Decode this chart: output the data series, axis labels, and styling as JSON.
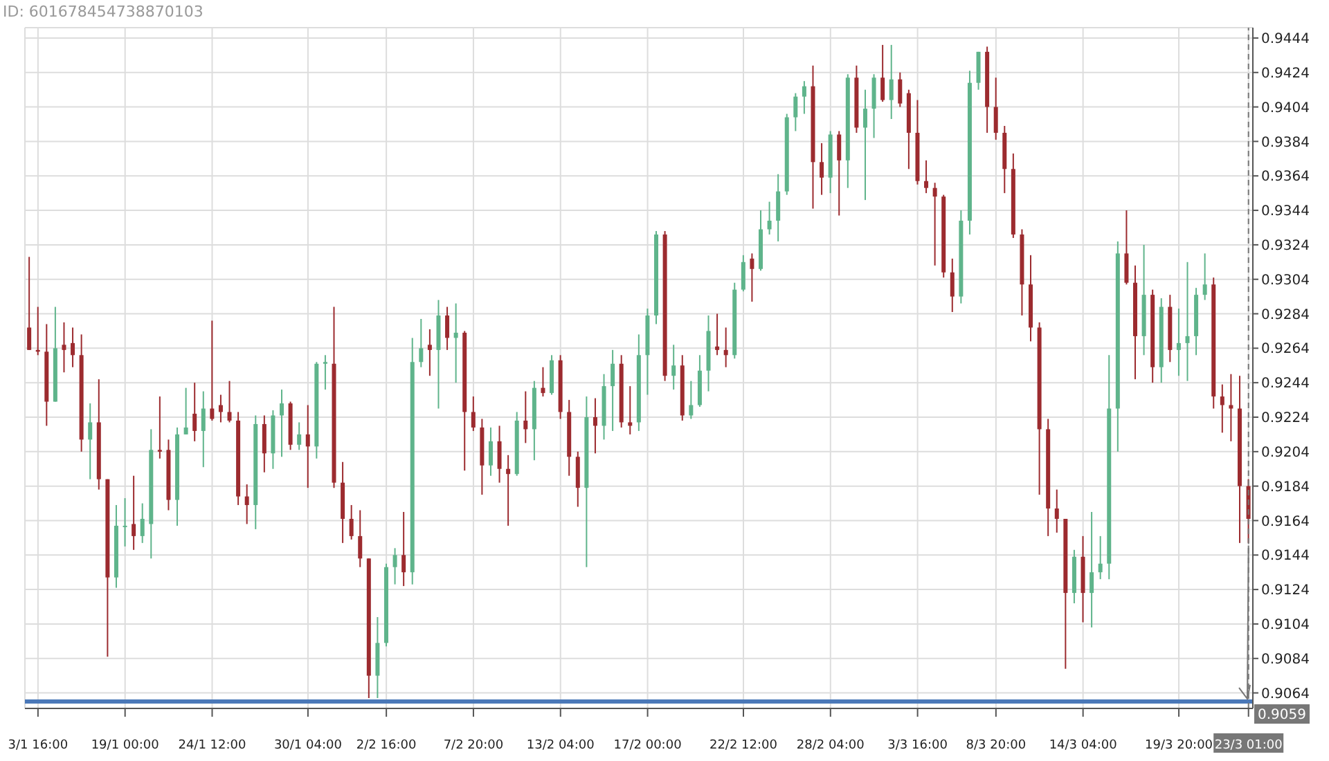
{
  "chart_data": {
    "type": "candlestick",
    "annotations": [
      "ID: 601678454738870103"
    ],
    "categories": [
      null,
      "3/1 16:00",
      null,
      null,
      null,
      null,
      null,
      null,
      null,
      null,
      null,
      "19/1 00:00",
      null,
      null,
      null,
      null,
      null,
      null,
      null,
      null,
      null,
      "24/1 12:00",
      null,
      null,
      null,
      null,
      null,
      null,
      null,
      null,
      null,
      null,
      "30/1 04:00",
      null,
      null,
      null,
      null,
      null,
      null,
      null,
      null,
      "2/2 16:00",
      null,
      null,
      null,
      null,
      null,
      null,
      null,
      null,
      null,
      "7/2 20:00",
      null,
      null,
      null,
      null,
      null,
      null,
      null,
      null,
      null,
      "13/2 04:00",
      null,
      null,
      null,
      null,
      null,
      null,
      null,
      null,
      null,
      "17/2 00:00",
      null,
      null,
      null,
      null,
      null,
      null,
      null,
      null,
      null,
      null,
      "22/2 12:00",
      null,
      null,
      null,
      null,
      null,
      null,
      null,
      null,
      null,
      "28/2 04:00",
      null,
      null,
      null,
      null,
      null,
      null,
      null,
      null,
      null,
      "3/3 16:00",
      null,
      null,
      null,
      null,
      null,
      null,
      null,
      null,
      "8/3 20:00",
      null,
      null,
      null,
      null,
      null,
      null,
      null,
      null,
      null,
      "14/3 04:00",
      null,
      null,
      null,
      null,
      null,
      null,
      null,
      null,
      null,
      null,
      "19/3 20:00",
      null,
      null,
      null,
      null,
      null,
      null,
      null,
      "23/3 01:00"
    ],
    "ohlc": [
      [
        0.9276,
        0.9317,
        0.9263,
        0.9263
      ],
      [
        0.9263,
        0.9288,
        0.926,
        0.9262
      ],
      [
        0.9262,
        0.9278,
        0.9219,
        0.9233
      ],
      [
        0.9233,
        0.9288,
        0.9233,
        0.9264
      ],
      [
        0.9266,
        0.9279,
        0.925,
        0.9263
      ],
      [
        0.9267,
        0.9276,
        0.9253,
        0.926
      ],
      [
        0.926,
        0.9272,
        0.9204,
        0.9211
      ],
      [
        0.9211,
        0.9232,
        0.9188,
        0.9221
      ],
      [
        0.9221,
        0.9246,
        0.9182,
        0.9188
      ],
      [
        0.9188,
        0.9188,
        0.9085,
        0.9131
      ],
      [
        0.9131,
        0.9173,
        0.9125,
        0.9161
      ],
      [
        0.9161,
        0.9177,
        0.9149,
        0.9161
      ],
      [
        0.9162,
        0.919,
        0.9147,
        0.9155
      ],
      [
        0.9155,
        0.9174,
        0.9151,
        0.9165
      ],
      [
        0.9162,
        0.9217,
        0.9142,
        0.9205
      ],
      [
        0.9205,
        0.9236,
        0.92,
        0.9204
      ],
      [
        0.9205,
        0.9211,
        0.917,
        0.9176
      ],
      [
        0.9176,
        0.9218,
        0.9161,
        0.9214
      ],
      [
        0.9214,
        0.9241,
        0.9214,
        0.9218
      ],
      [
        0.9226,
        0.9244,
        0.921,
        0.9216
      ],
      [
        0.9216,
        0.9239,
        0.9195,
        0.9229
      ],
      [
        0.9229,
        0.928,
        0.9222,
        0.9223
      ],
      [
        0.9231,
        0.9237,
        0.9221,
        0.9227
      ],
      [
        0.9227,
        0.9245,
        0.9221,
        0.9222
      ],
      [
        0.9222,
        0.9227,
        0.9173,
        0.9178
      ],
      [
        0.9178,
        0.9185,
        0.9162,
        0.9173
      ],
      [
        0.9173,
        0.9225,
        0.9159,
        0.922
      ],
      [
        0.922,
        0.9225,
        0.9192,
        0.9203
      ],
      [
        0.9203,
        0.9228,
        0.9194,
        0.9225
      ],
      [
        0.9225,
        0.924,
        0.9201,
        0.9232
      ],
      [
        0.9232,
        0.9233,
        0.9205,
        0.9208
      ],
      [
        0.9208,
        0.9221,
        0.9205,
        0.9214
      ],
      [
        0.9214,
        0.9231,
        0.9183,
        0.9207
      ],
      [
        0.9207,
        0.9256,
        0.92,
        0.9255
      ],
      [
        0.9255,
        0.926,
        0.924,
        0.9256
      ],
      [
        0.9255,
        0.9288,
        0.9183,
        0.9186
      ],
      [
        0.9186,
        0.9198,
        0.9151,
        0.9165
      ],
      [
        0.9165,
        0.9173,
        0.9153,
        0.9155
      ],
      [
        0.9155,
        0.917,
        0.9137,
        0.9142
      ],
      [
        0.9142,
        0.9142,
        0.9061,
        0.9074
      ],
      [
        0.9074,
        0.9108,
        0.9061,
        0.9093
      ],
      [
        0.9093,
        0.9139,
        0.9091,
        0.9137
      ],
      [
        0.9137,
        0.9148,
        0.9127,
        0.9144
      ],
      [
        0.9144,
        0.9169,
        0.9126,
        0.9134
      ],
      [
        0.9134,
        0.927,
        0.9127,
        0.9256
      ],
      [
        0.9256,
        0.9281,
        0.9253,
        0.9264
      ],
      [
        0.9266,
        0.9275,
        0.9248,
        0.9263
      ],
      [
        0.9263,
        0.9292,
        0.9229,
        0.9283
      ],
      [
        0.9283,
        0.9288,
        0.9263,
        0.927
      ],
      [
        0.927,
        0.929,
        0.9244,
        0.9273
      ],
      [
        0.9273,
        0.9274,
        0.9193,
        0.9227
      ],
      [
        0.9227,
        0.9236,
        0.9216,
        0.9218
      ],
      [
        0.9218,
        0.9223,
        0.9179,
        0.9196
      ],
      [
        0.9196,
        0.9218,
        0.919,
        0.921
      ],
      [
        0.921,
        0.9219,
        0.9186,
        0.9194
      ],
      [
        0.9194,
        0.9202,
        0.9161,
        0.9191
      ],
      [
        0.9191,
        0.9227,
        0.919,
        0.9222
      ],
      [
        0.9222,
        0.9239,
        0.9209,
        0.9217
      ],
      [
        0.9217,
        0.9245,
        0.9199,
        0.9241
      ],
      [
        0.9241,
        0.9253,
        0.9236,
        0.9238
      ],
      [
        0.9238,
        0.926,
        0.9237,
        0.9257
      ],
      [
        0.9257,
        0.926,
        0.9223,
        0.9227
      ],
      [
        0.9227,
        0.9234,
        0.919,
        0.9201
      ],
      [
        0.9201,
        0.9204,
        0.9172,
        0.9183
      ],
      [
        0.9183,
        0.9236,
        0.9137,
        0.9224
      ],
      [
        0.9224,
        0.9235,
        0.9203,
        0.9219
      ],
      [
        0.9219,
        0.9249,
        0.9211,
        0.9242
      ],
      [
        0.9242,
        0.9263,
        0.9216,
        0.9255
      ],
      [
        0.9255,
        0.926,
        0.9218,
        0.9221
      ],
      [
        0.9221,
        0.9242,
        0.9214,
        0.9219
      ],
      [
        0.9221,
        0.9272,
        0.9216,
        0.926
      ],
      [
        0.926,
        0.9287,
        0.9237,
        0.9283
      ],
      [
        0.9283,
        0.9332,
        0.9278,
        0.933
      ],
      [
        0.933,
        0.9332,
        0.9245,
        0.9248
      ],
      [
        0.9248,
        0.9266,
        0.924,
        0.9254
      ],
      [
        0.9254,
        0.926,
        0.9222,
        0.9225
      ],
      [
        0.9225,
        0.9245,
        0.9223,
        0.9231
      ],
      [
        0.9231,
        0.926,
        0.923,
        0.9251
      ],
      [
        0.9251,
        0.9283,
        0.9239,
        0.9274
      ],
      [
        0.9265,
        0.9284,
        0.926,
        0.9263
      ],
      [
        0.9263,
        0.9276,
        0.9253,
        0.926
      ],
      [
        0.926,
        0.9302,
        0.9258,
        0.9298
      ],
      [
        0.9298,
        0.9318,
        0.9297,
        0.9314
      ],
      [
        0.9316,
        0.9319,
        0.9291,
        0.931
      ],
      [
        0.931,
        0.9344,
        0.9309,
        0.9333
      ],
      [
        0.9333,
        0.9349,
        0.933,
        0.9338
      ],
      [
        0.9338,
        0.9365,
        0.9326,
        0.9355
      ],
      [
        0.9355,
        0.94,
        0.9353,
        0.9398
      ],
      [
        0.9398,
        0.9412,
        0.939,
        0.941
      ],
      [
        0.941,
        0.9419,
        0.94,
        0.9416
      ],
      [
        0.9416,
        0.9428,
        0.9345,
        0.9372
      ],
      [
        0.9372,
        0.9383,
        0.9353,
        0.9363
      ],
      [
        0.9363,
        0.939,
        0.9354,
        0.9388
      ],
      [
        0.9388,
        0.939,
        0.9341,
        0.9373
      ],
      [
        0.9373,
        0.9423,
        0.9357,
        0.9421
      ],
      [
        0.9421,
        0.9428,
        0.9389,
        0.9392
      ],
      [
        0.9392,
        0.9414,
        0.935,
        0.9403
      ],
      [
        0.9403,
        0.9423,
        0.9386,
        0.9421
      ],
      [
        0.9421,
        0.944,
        0.9407,
        0.9408
      ],
      [
        0.9408,
        0.944,
        0.9397,
        0.942
      ],
      [
        0.942,
        0.9424,
        0.9404,
        0.9406
      ],
      [
        0.9412,
        0.9414,
        0.9368,
        0.9389
      ],
      [
        0.9389,
        0.9408,
        0.9359,
        0.9361
      ],
      [
        0.9361,
        0.9373,
        0.9354,
        0.9357
      ],
      [
        0.9357,
        0.936,
        0.9312,
        0.9352
      ],
      [
        0.9352,
        0.9353,
        0.9305,
        0.9308
      ],
      [
        0.9308,
        0.9316,
        0.9285,
        0.9294
      ],
      [
        0.9294,
        0.9344,
        0.929,
        0.9338
      ],
      [
        0.9338,
        0.9425,
        0.933,
        0.9418
      ],
      [
        0.9418,
        0.9436,
        0.9414,
        0.9436
      ],
      [
        0.9436,
        0.9439,
        0.9389,
        0.9404
      ],
      [
        0.9404,
        0.9421,
        0.9385,
        0.9389
      ],
      [
        0.9389,
        0.9393,
        0.9354,
        0.9368
      ],
      [
        0.9368,
        0.9377,
        0.9328,
        0.933
      ],
      [
        0.933,
        0.9333,
        0.9283,
        0.9301
      ],
      [
        0.9301,
        0.9318,
        0.9268,
        0.9276
      ],
      [
        0.9276,
        0.9279,
        0.9179,
        0.9217
      ],
      [
        0.9217,
        0.9223,
        0.9155,
        0.9171
      ],
      [
        0.9171,
        0.9182,
        0.9157,
        0.9165
      ],
      [
        0.9165,
        0.9165,
        0.9078,
        0.9122
      ],
      [
        0.9122,
        0.9147,
        0.9116,
        0.9143
      ],
      [
        0.9143,
        0.9155,
        0.9105,
        0.9122
      ],
      [
        0.9122,
        0.9169,
        0.9102,
        0.9134
      ],
      [
        0.9134,
        0.9155,
        0.913,
        0.9139
      ],
      [
        0.9139,
        0.926,
        0.913,
        0.9229
      ],
      [
        0.9229,
        0.9326,
        0.9204,
        0.9319
      ],
      [
        0.9319,
        0.9344,
        0.9301,
        0.9302
      ],
      [
        0.9302,
        0.9312,
        0.9246,
        0.9271
      ],
      [
        0.9271,
        0.9324,
        0.926,
        0.9295
      ],
      [
        0.9295,
        0.9298,
        0.9244,
        0.9253
      ],
      [
        0.9253,
        0.9293,
        0.9244,
        0.9288
      ],
      [
        0.9288,
        0.9295,
        0.9256,
        0.9263
      ],
      [
        0.9263,
        0.9287,
        0.9248,
        0.9267
      ],
      [
        0.9267,
        0.9314,
        0.9245,
        0.9271
      ],
      [
        0.9271,
        0.9299,
        0.926,
        0.9295
      ],
      [
        0.9295,
        0.9319,
        0.9292,
        0.9301
      ],
      [
        0.9301,
        0.9305,
        0.9229,
        0.9236
      ],
      [
        0.9236,
        0.9243,
        0.9215,
        0.9231
      ],
      [
        0.9231,
        0.9249,
        0.921,
        0.9229
      ],
      [
        0.9229,
        0.9248,
        0.9151,
        0.9184
      ],
      [
        0.9184,
        0.9188,
        0.9151,
        0.9165
      ]
    ],
    "ylim": [
      0.9055,
      0.945
    ],
    "yticks": [
      0.9064,
      0.9084,
      0.9104,
      0.9124,
      0.9144,
      0.9164,
      0.9184,
      0.9204,
      0.9224,
      0.9244,
      0.9264,
      0.9284,
      0.9304,
      0.9324,
      0.9344,
      0.9364,
      0.9384,
      0.9404,
      0.9424,
      0.9444
    ],
    "grid": true,
    "ref_lines": [
      {
        "axis": "y",
        "value": 0.9059,
        "label": "0.9059",
        "color": "#4a78b8"
      },
      {
        "axis": "x",
        "value": "23/3 01:00",
        "color": "#777777",
        "line_style": "dashed"
      }
    ]
  }
}
